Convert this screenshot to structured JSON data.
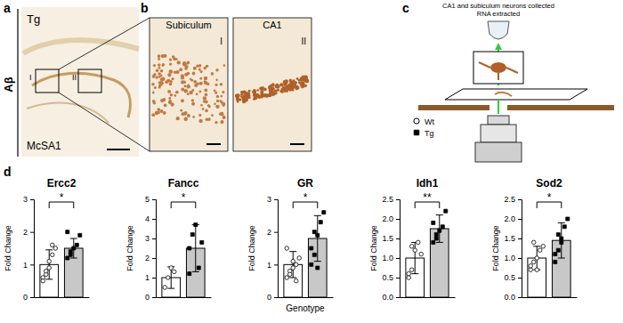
{
  "figure": {
    "panels": {
      "a": {
        "letter": "a",
        "stain": "Aβ",
        "group": "Tg",
        "antibody": "McSA1",
        "boxes": [
          "I",
          "II"
        ]
      },
      "b": {
        "letter": "b",
        "images": [
          {
            "title": "Subiculum",
            "box": "I"
          },
          {
            "title": "CA1",
            "box": "II"
          }
        ]
      },
      "c": {
        "letter": "c",
        "caption": [
          "CA1 and subiculum neurons collected",
          "RNA extracted"
        ]
      },
      "d": {
        "letter": "d"
      }
    },
    "legend_entries": [
      {
        "label": "Wt",
        "marker": "circle",
        "color": "#ffffff"
      },
      {
        "label": "Tg",
        "marker": "square",
        "color": "#000000"
      }
    ]
  },
  "chart_data": [
    {
      "type": "bar",
      "title": "Ercc2",
      "ylabel": "Fold Change",
      "categories": [
        null,
        null
      ],
      "values": [
        1.0,
        1.5
      ],
      "errors": [
        0.45,
        0.3
      ],
      "colors": [
        "#ffffff",
        "#c8c8c8"
      ],
      "points": [
        [
          0.6,
          0.7,
          0.9,
          1.3,
          1.5,
          0.5,
          0.8,
          1.1,
          1.6
        ],
        [
          1.2,
          1.3,
          1.5,
          1.6,
          1.9,
          2.0,
          1.4
        ]
      ],
      "significance": "*",
      "ylim": [
        0,
        3
      ],
      "yticks": [
        0,
        1,
        2,
        3
      ]
    },
    {
      "type": "bar",
      "title": "Fancc",
      "ylabel": "Fold Change",
      "categories": [
        null,
        null
      ],
      "values": [
        1.0,
        2.5
      ],
      "errors": [
        0.55,
        1.2
      ],
      "colors": [
        "#ffffff",
        "#c8c8c8"
      ],
      "points": [
        [
          0.5,
          1.0,
          1.5,
          1.3
        ],
        [
          1.2,
          3.2,
          3.7,
          1.5,
          2.8,
          2.5
        ]
      ],
      "significance": "*",
      "ylim": [
        0,
        5
      ],
      "yticks": [
        0,
        1,
        2,
        3,
        4,
        5
      ]
    },
    {
      "type": "bar",
      "title": "GR",
      "ylabel": "Fold Change",
      "xlabel": "Genotype",
      "categories": [
        null,
        null
      ],
      "values": [
        1.0,
        1.8
      ],
      "errors": [
        0.4,
        0.7
      ],
      "colors": [
        "#ffffff",
        "#c8c8c8"
      ],
      "points": [
        [
          0.6,
          0.8,
          0.9,
          1.0,
          1.2,
          1.5,
          0.7,
          1.1,
          0.5
        ],
        [
          1.0,
          1.3,
          1.9,
          2.3,
          2.6,
          1.5,
          2.0,
          0.9
        ]
      ],
      "significance": "*",
      "ylim": [
        0,
        3
      ],
      "yticks": [
        0,
        1,
        2,
        3
      ]
    },
    {
      "type": "bar",
      "title": "Idh1",
      "ylabel": "Fold Change",
      "categories": [
        null,
        null
      ],
      "values": [
        1.0,
        1.75
      ],
      "errors": [
        0.4,
        0.35
      ],
      "colors": [
        "#ffffff",
        "#c8c8c8"
      ],
      "points": [
        [
          0.5,
          0.7,
          1.2,
          1.4,
          1.1,
          0.6,
          1.3
        ],
        [
          1.4,
          1.6,
          1.7,
          1.8,
          2.2,
          1.9,
          1.5
        ]
      ],
      "significance": "**",
      "ylim": [
        0,
        2.5
      ],
      "yticks": [
        {
          "value": 0,
          "label": "0.0"
        },
        {
          "value": 0.5,
          "label": "0.5"
        },
        {
          "value": 1,
          "label": "1.0"
        },
        {
          "value": 1.5,
          "label": "1.5"
        },
        {
          "value": 2,
          "label": "2.0"
        },
        {
          "value": 2.5,
          "label": "2.5"
        }
      ]
    },
    {
      "type": "bar",
      "title": "Sod2",
      "ylabel": "Fold Change",
      "categories": [
        null,
        null
      ],
      "values": [
        1.0,
        1.45
      ],
      "errors": [
        0.3,
        0.45
      ],
      "colors": [
        "#ffffff",
        "#c8c8c8"
      ],
      "points": [
        [
          0.7,
          0.9,
          1.0,
          1.2,
          1.3,
          0.8,
          1.4,
          0.7
        ],
        [
          0.9,
          1.2,
          1.5,
          1.8,
          2.0,
          1.1,
          1.6,
          1.4
        ]
      ],
      "significance": "*",
      "ylim": [
        0,
        2.5
      ],
      "yticks": [
        {
          "value": 0,
          "label": "0.0"
        },
        {
          "value": 0.5,
          "label": "0.5"
        },
        {
          "value": 1,
          "label": "1.0"
        },
        {
          "value": 1.5,
          "label": "1.5"
        },
        {
          "value": 2,
          "label": "2.0"
        },
        {
          "value": 2.5,
          "label": "2.5"
        }
      ]
    }
  ]
}
